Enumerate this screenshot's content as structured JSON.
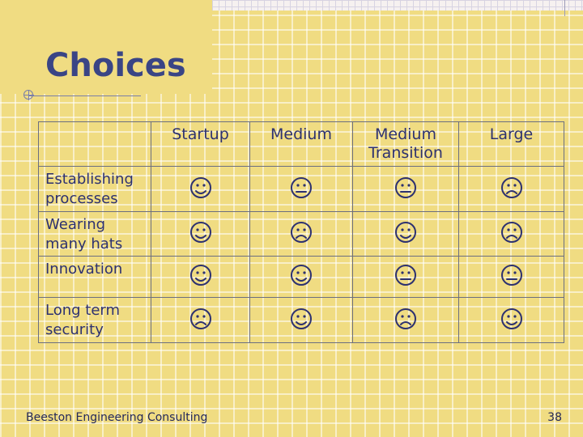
{
  "slide": {
    "title": "Choices",
    "footer": "Beeston Engineering Consulting",
    "page_number": "38"
  },
  "table": {
    "columns": [
      "",
      "Startup",
      "Medium",
      "Medium Transition",
      "Large"
    ],
    "rows": [
      {
        "label": "Establishing processes",
        "cells": [
          "smile-icon",
          "neutral-icon",
          "neutral-icon",
          "frown-icon"
        ]
      },
      {
        "label": "Wearing many hats",
        "cells": [
          "smile-icon",
          "frown-icon",
          "smile-icon",
          "frown-icon"
        ]
      },
      {
        "label": "Innovation",
        "cells": [
          "smile-icon",
          "smile-icon",
          "neutral-icon",
          "neutral-icon"
        ]
      },
      {
        "label": "Long term security",
        "cells": [
          "frown-icon",
          "smile-icon",
          "frown-icon",
          "smile-icon"
        ]
      }
    ]
  },
  "colors": {
    "background": "#f0dc82",
    "title": "#3a4585",
    "text": "#2d3170",
    "border": "#6b6e80"
  }
}
